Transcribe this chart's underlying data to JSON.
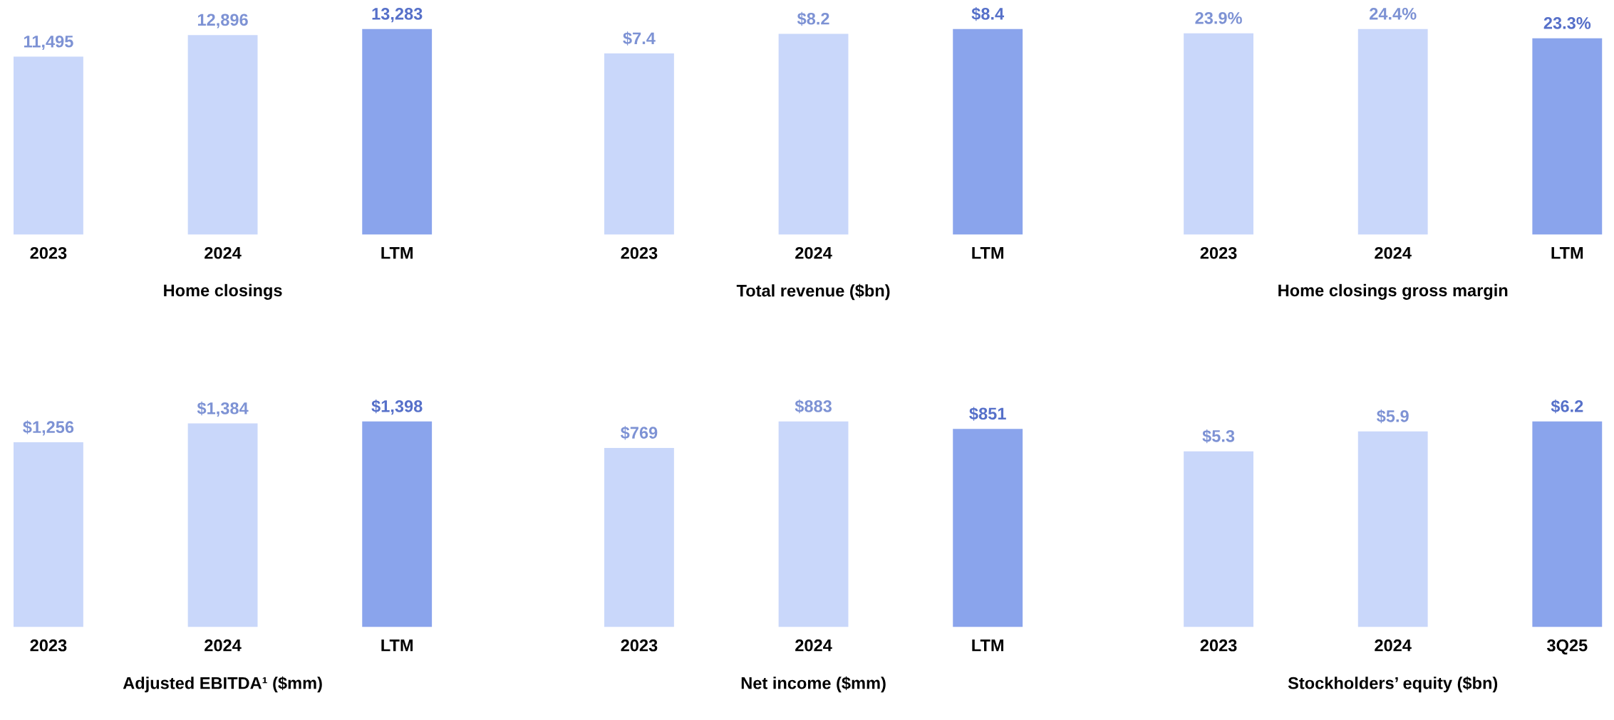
{
  "chart_data": [
    {
      "type": "bar",
      "xlabel": "Home closings",
      "categories": [
        "2023",
        "2024",
        "LTM"
      ],
      "values": [
        11495,
        12896,
        13283
      ],
      "colors": [
        "#c9d7fa",
        "#c9d7fa",
        "#8aa4ec"
      ],
      "value_labels": [
        "11,495",
        "12,896",
        "13,283"
      ],
      "tick_labels": "x"
    },
    {
      "type": "bar",
      "xlabel": "Total revenue ($bn)",
      "categories": [
        "2023",
        "2024",
        "LTM"
      ],
      "values": [
        7.4,
        8.2,
        8.4
      ],
      "colors": [
        "#c9d7fa",
        "#c9d7fa",
        "#8aa4ec"
      ],
      "value_labels": [
        "$7.4",
        "$8.2",
        "$8.4"
      ],
      "tick_labels": "x"
    },
    {
      "type": "bar",
      "xlabel": "Home closings gross margin",
      "categories": [
        "2023",
        "2024",
        "LTM"
      ],
      "values": [
        23.9,
        24.4,
        23.3
      ],
      "colors": [
        "#c9d7fa",
        "#c9d7fa",
        "#8aa4ec"
      ],
      "value_labels": [
        "23.9%",
        "24.4%",
        "23.3%"
      ],
      "tick_labels": "x"
    },
    {
      "type": "bar",
      "xlabel": "Adjusted EBITDA¹ ($mm)",
      "categories": [
        "2023",
        "2024",
        "LTM"
      ],
      "values": [
        1256,
        1384,
        1398
      ],
      "colors": [
        "#c9d7fa",
        "#c9d7fa",
        "#8aa4ec"
      ],
      "value_labels": [
        "$1,256",
        "$1,384",
        "$1,398"
      ],
      "tick_labels": "x"
    },
    {
      "type": "bar",
      "xlabel": "Net income ($mm)",
      "categories": [
        "2023",
        "2024",
        "LTM"
      ],
      "values": [
        769,
        883,
        851
      ],
      "colors": [
        "#c9d7fa",
        "#c9d7fa",
        "#8aa4ec"
      ],
      "value_labels": [
        "$769",
        "$883",
        "$851"
      ],
      "tick_labels": "x"
    },
    {
      "type": "bar",
      "xlabel": "Stockholders’ equity ($bn)",
      "categories": [
        "2023",
        "2024",
        "3Q25"
      ],
      "values": [
        5.3,
        5.9,
        6.2
      ],
      "colors": [
        "#c9d7fa",
        "#c9d7fa",
        "#8aa4ec"
      ],
      "value_labels": [
        "$5.3",
        "$5.9",
        "$6.2"
      ],
      "tick_labels": "x"
    }
  ]
}
